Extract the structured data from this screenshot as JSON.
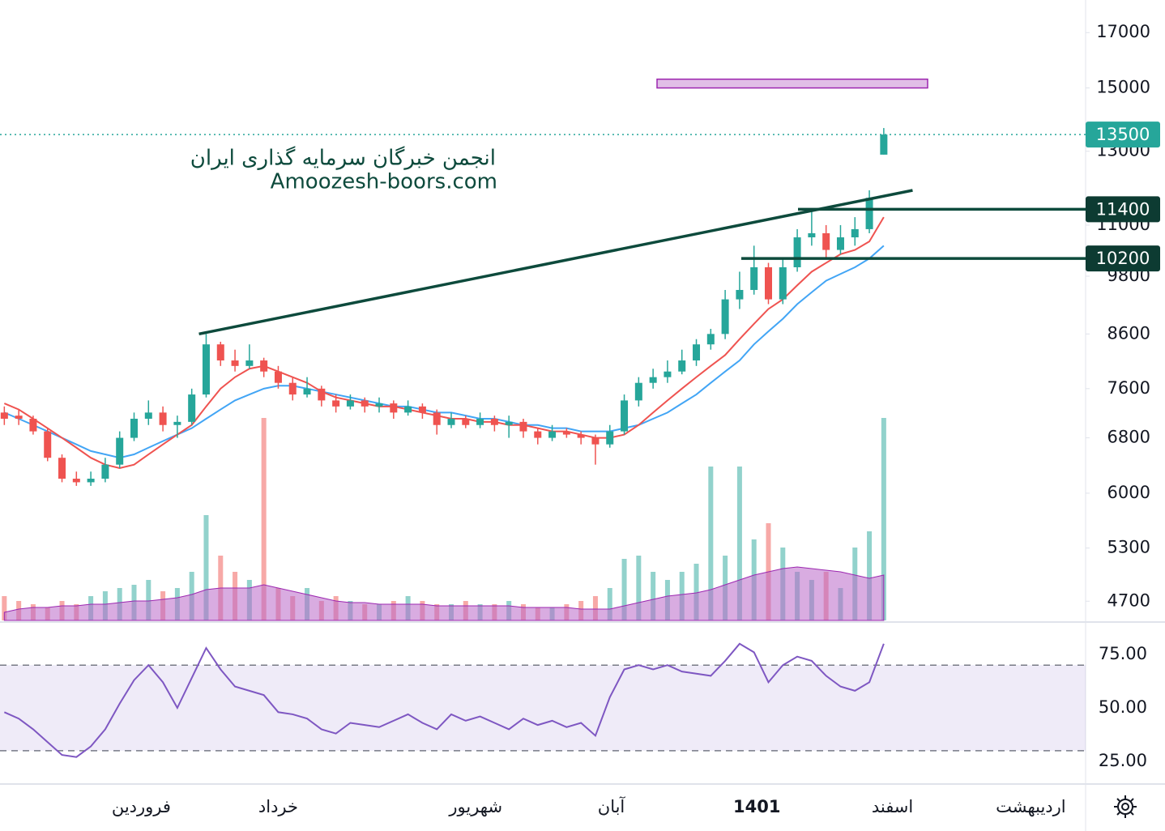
{
  "chart_data": {
    "type": "candlestick",
    "watermark": [
      "انجمن خبرگان سرمایه گذاری ایران",
      "Amoozesh-boors.com"
    ],
    "log_scale": true,
    "ylim": [
      4500,
      18300
    ],
    "yticks": [
      4700,
      5300,
      6000,
      6800,
      7600,
      8600,
      9800,
      11000,
      13000,
      15000,
      17000
    ],
    "xlim": [
      -0.3,
      75
    ],
    "xticks": [
      {
        "value": 9.5,
        "label": "فروردین"
      },
      {
        "value": 19,
        "label": "خرداد"
      },
      {
        "value": 32.7,
        "label": "شهریور"
      },
      {
        "value": 42.1,
        "label": "آبان"
      },
      {
        "value": 52.2,
        "label": "1401"
      },
      {
        "value": 61.6,
        "label": "اسفند"
      },
      {
        "value": 71.2,
        "label": "اردیبهشت"
      }
    ],
    "colors": {
      "up": "#26a69a",
      "down": "#ef5350"
    },
    "ohlc": [
      [
        7200,
        7300,
        7000,
        7100
      ],
      [
        7150,
        7250,
        7000,
        7100
      ],
      [
        7100,
        7150,
        6850,
        6900
      ],
      [
        6900,
        6950,
        6450,
        6500
      ],
      [
        6500,
        6550,
        6150,
        6200
      ],
      [
        6200,
        6300,
        6100,
        6150
      ],
      [
        6150,
        6300,
        6100,
        6200
      ],
      [
        6200,
        6500,
        6150,
        6400
      ],
      [
        6400,
        6900,
        6350,
        6800
      ],
      [
        6800,
        7200,
        6750,
        7100
      ],
      [
        7100,
        7400,
        7000,
        7200
      ],
      [
        7200,
        7300,
        6900,
        7000
      ],
      [
        7000,
        7150,
        6800,
        7050
      ],
      [
        7050,
        7600,
        7000,
        7500
      ],
      [
        7500,
        8600,
        7450,
        8400
      ],
      [
        8400,
        8450,
        8000,
        8100
      ],
      [
        8100,
        8300,
        7900,
        8000
      ],
      [
        8000,
        8400,
        7950,
        8100
      ],
      [
        8100,
        8150,
        7800,
        7900
      ],
      [
        7900,
        8000,
        7600,
        7700
      ],
      [
        7700,
        7800,
        7400,
        7500
      ],
      [
        7500,
        7800,
        7450,
        7600
      ],
      [
        7600,
        7650,
        7300,
        7400
      ],
      [
        7400,
        7500,
        7200,
        7300
      ],
      [
        7300,
        7500,
        7250,
        7400
      ],
      [
        7400,
        7450,
        7200,
        7300
      ],
      [
        7300,
        7450,
        7200,
        7350
      ],
      [
        7350,
        7400,
        7100,
        7200
      ],
      [
        7200,
        7400,
        7150,
        7300
      ],
      [
        7300,
        7350,
        7100,
        7200
      ],
      [
        7200,
        7250,
        6850,
        7000
      ],
      [
        7000,
        7200,
        6950,
        7100
      ],
      [
        7100,
        7150,
        6950,
        7000
      ],
      [
        7000,
        7200,
        6950,
        7100
      ],
      [
        7100,
        7150,
        6900,
        7000
      ],
      [
        7000,
        7150,
        6800,
        7050
      ],
      [
        7050,
        7100,
        6800,
        6900
      ],
      [
        6900,
        6950,
        6700,
        6800
      ],
      [
        6800,
        7000,
        6750,
        6900
      ],
      [
        6900,
        6950,
        6800,
        6850
      ],
      [
        6850,
        6900,
        6700,
        6800
      ],
      [
        6800,
        6850,
        6400,
        6700
      ],
      [
        6700,
        7000,
        6650,
        6900
      ],
      [
        6900,
        7500,
        6850,
        7400
      ],
      [
        7400,
        7800,
        7300,
        7700
      ],
      [
        7700,
        7950,
        7600,
        7800
      ],
      [
        7800,
        8100,
        7700,
        7900
      ],
      [
        7900,
        8300,
        7850,
        8100
      ],
      [
        8100,
        8500,
        8000,
        8400
      ],
      [
        8400,
        8700,
        8300,
        8600
      ],
      [
        8600,
        9500,
        8500,
        9300
      ],
      [
        9300,
        9900,
        9100,
        9500
      ],
      [
        9500,
        10500,
        9400,
        10000
      ],
      [
        10000,
        10100,
        9200,
        9300
      ],
      [
        9300,
        10200,
        9200,
        10000
      ],
      [
        10000,
        10900,
        9900,
        10700
      ],
      [
        10700,
        11400,
        10500,
        10800
      ],
      [
        10800,
        11000,
        10200,
        10400
      ],
      [
        10400,
        11000,
        10300,
        10700
      ],
      [
        10700,
        11200,
        10500,
        10900
      ],
      [
        10900,
        11900,
        10800,
        11700
      ],
      [
        12900,
        13700,
        12900,
        13500
      ]
    ],
    "ma_fast": {
      "color": "#ef5350",
      "values": [
        7350,
        7250,
        7100,
        6950,
        6800,
        6650,
        6500,
        6400,
        6350,
        6400,
        6550,
        6700,
        6850,
        7000,
        7300,
        7600,
        7800,
        7950,
        8000,
        7900,
        7800,
        7700,
        7550,
        7450,
        7400,
        7350,
        7300,
        7300,
        7250,
        7200,
        7150,
        7100,
        7100,
        7050,
        7050,
        7000,
        7000,
        6950,
        6900,
        6900,
        6850,
        6800,
        6800,
        6850,
        7000,
        7200,
        7400,
        7600,
        7800,
        8000,
        8200,
        8500,
        8800,
        9100,
        9300,
        9600,
        9900,
        10100,
        10300,
        10400,
        10600,
        11200
      ]
    },
    "ma_slow": {
      "color": "#42a5f5",
      "values": [
        7200,
        7100,
        7000,
        6900,
        6800,
        6700,
        6600,
        6550,
        6500,
        6550,
        6650,
        6750,
        6850,
        6950,
        7100,
        7250,
        7400,
        7500,
        7600,
        7650,
        7650,
        7600,
        7550,
        7500,
        7450,
        7400,
        7350,
        7300,
        7300,
        7250,
        7200,
        7200,
        7150,
        7100,
        7100,
        7050,
        7000,
        7000,
        6950,
        6950,
        6900,
        6900,
        6900,
        6950,
        7000,
        7100,
        7200,
        7350,
        7500,
        7700,
        7900,
        8100,
        8400,
        8650,
        8900,
        9200,
        9450,
        9700,
        9850,
        10000,
        10200,
        10500
      ]
    },
    "volume_lim": [
      0,
      130
    ],
    "volume": [
      15,
      12,
      10,
      8,
      12,
      10,
      15,
      18,
      20,
      22,
      25,
      18,
      20,
      30,
      65,
      40,
      30,
      25,
      125,
      20,
      15,
      20,
      12,
      15,
      12,
      10,
      10,
      12,
      15,
      12,
      10,
      10,
      12,
      10,
      10,
      12,
      10,
      8,
      8,
      10,
      12,
      15,
      20,
      38,
      40,
      30,
      25,
      30,
      35,
      95,
      40,
      95,
      50,
      60,
      45,
      30,
      25,
      30,
      20,
      45,
      55,
      125
    ],
    "volume_ma": {
      "color": "#ba68c8",
      "values": [
        5,
        7,
        8,
        8,
        9,
        9,
        10,
        10,
        11,
        12,
        12,
        13,
        14,
        16,
        19,
        20,
        20,
        20,
        22,
        20,
        18,
        16,
        14,
        12,
        11,
        11,
        10,
        10,
        10,
        10,
        9,
        9,
        9,
        9,
        9,
        9,
        8,
        8,
        8,
        8,
        7,
        7,
        7,
        9,
        11,
        13,
        15,
        16,
        17,
        19,
        22,
        25,
        28,
        30,
        32,
        33,
        32,
        31,
        30,
        28,
        26,
        28
      ]
    },
    "levels": [
      11400,
      10200
    ],
    "last_price": 13500,
    "target_zone": [
      15000,
      15300
    ],
    "trendline": [
      8600,
      11900
    ],
    "rsi": {
      "color": "#7e57c2",
      "ylim": [
        14.4,
        89.4
      ],
      "band": [
        30,
        70
      ],
      "yticks": [
        {
          "value": 75,
          "label": "75.00"
        },
        {
          "value": 50,
          "label": "50.00"
        },
        {
          "value": 25,
          "label": "25.00"
        }
      ],
      "values": [
        48,
        45,
        40,
        34,
        28,
        27,
        32,
        40,
        52,
        63,
        70,
        62,
        50,
        64,
        78,
        68,
        60,
        58,
        56,
        48,
        47,
        45,
        40,
        38,
        43,
        42,
        41,
        44,
        47,
        43,
        40,
        47,
        44,
        46,
        43,
        40,
        45,
        42,
        44,
        41,
        43,
        37,
        55,
        68,
        70,
        68,
        70,
        67,
        66,
        65,
        72,
        80,
        76,
        62,
        70,
        74,
        72,
        65,
        60,
        58,
        62,
        80
      ]
    }
  }
}
